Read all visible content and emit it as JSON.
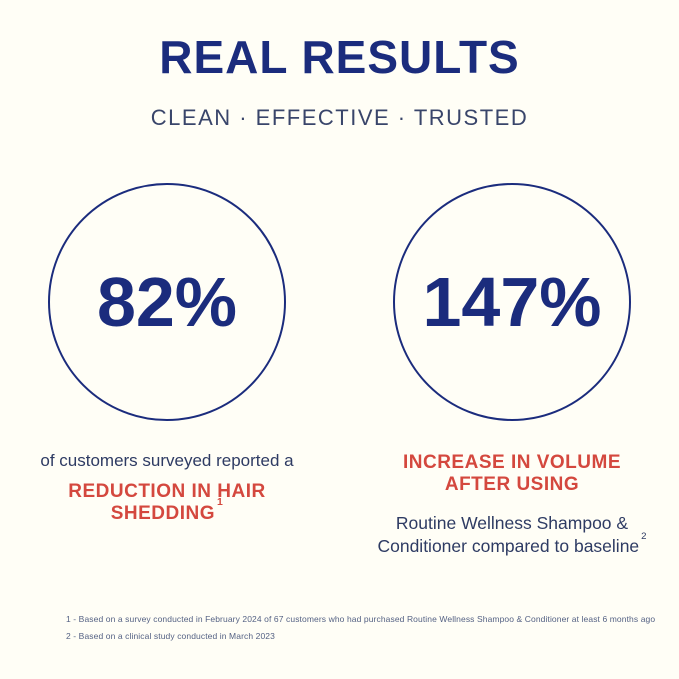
{
  "page": {
    "background_color": "#FFFEF6",
    "navy_color": "#1B2C7D",
    "red_color": "#D4483E"
  },
  "header": {
    "title": "REAL RESULTS",
    "tagline": "CLEAN · EFFECTIVE · TRUSTED"
  },
  "stats": [
    {
      "value": "82%",
      "lead": "of customers surveyed reported a",
      "headline_line1": "REDUCTION IN HAIR",
      "headline_line2": "SHEDDING",
      "headline_footnote_ref": "1"
    },
    {
      "value": "147%",
      "headline_line1": "INCREASE IN VOLUME",
      "headline_line2": "AFTER USING",
      "sub_line1": "Routine Wellness Shampoo &",
      "sub_line2": "Conditioner compared to baseline",
      "sub_footnote_ref": "2"
    }
  ],
  "footnotes": [
    "1 - Based on a survey conducted in February 2024 of 67 customers who had purchased Routine Wellness Shampoo & Conditioner at least 6 months ago",
    "2 - Based on a clinical study conducted in March 2023"
  ]
}
